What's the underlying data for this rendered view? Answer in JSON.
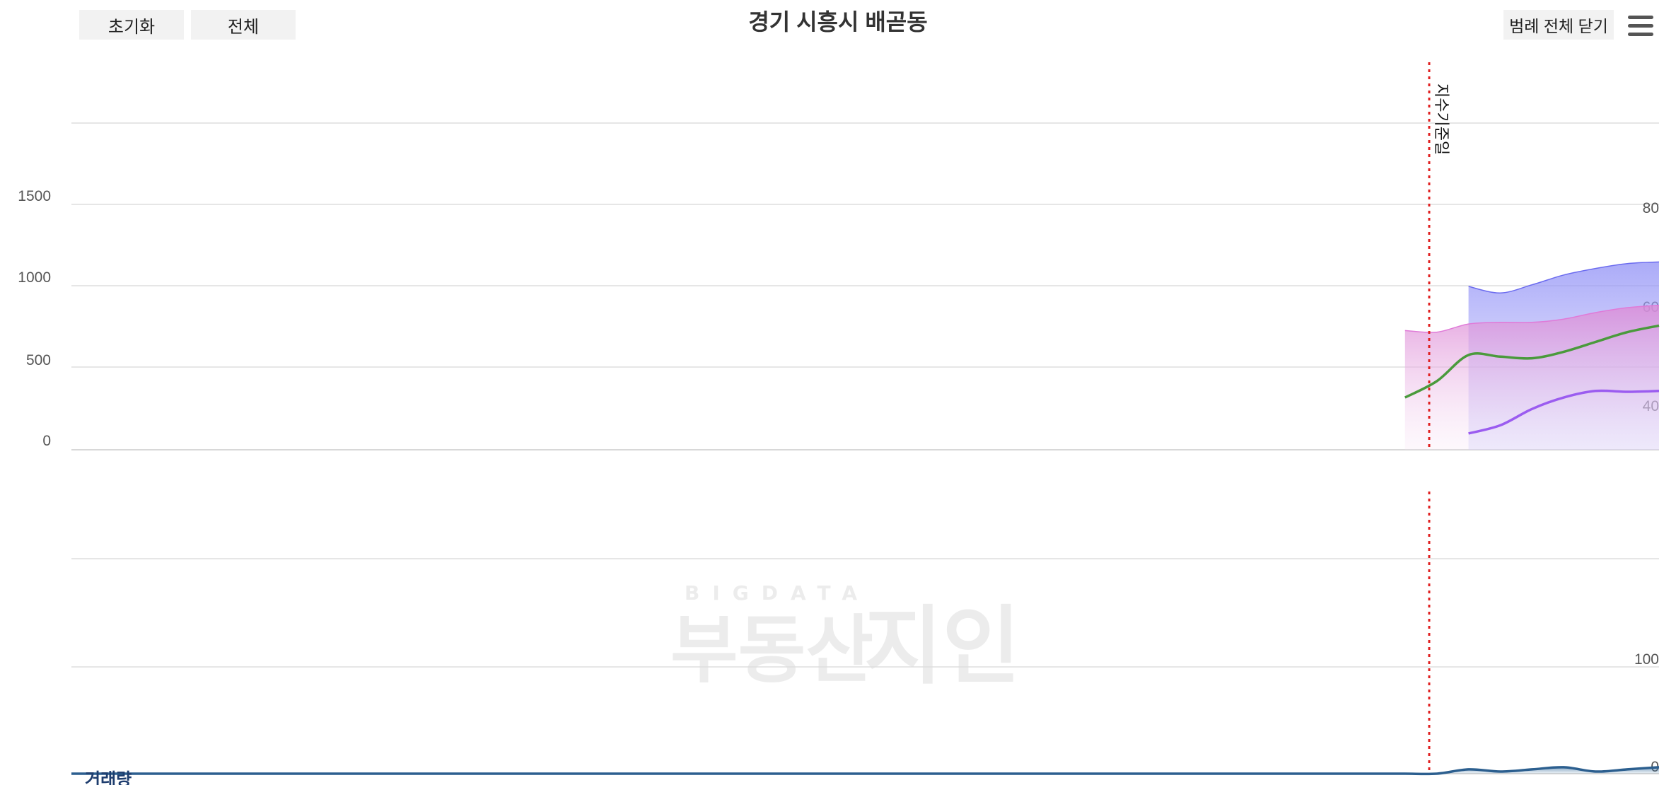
{
  "toolbar": {
    "reset_label": "초기화",
    "all_label": "전체",
    "legend_close_label": "범례 전체 닫기",
    "menu_icon": "hamburger-menu-icon"
  },
  "title": "경기 시흥시 배곧동",
  "watermark": {
    "small": "BIGDATA",
    "big_left": "부동산",
    "big_right": "지인"
  },
  "colors": {
    "blue_area": "#6b6bef",
    "pink_area": "#e07ad8",
    "green_line": "#4a9a3c",
    "purple_line": "#9b5cf0",
    "volume": "#2c5f8f",
    "ref_line": "#e02020"
  },
  "chart_data": [
    {
      "type": "area",
      "ylim_left": [
        0,
        2000
      ],
      "left_ticks": [
        "0",
        "500",
        "1000",
        "1500"
      ],
      "right_ticks": [
        "40",
        "60",
        "80"
      ],
      "x": [
        0,
        2,
        4,
        6,
        8,
        10,
        12,
        14,
        16,
        18,
        20,
        22,
        24,
        26,
        28,
        30,
        32,
        34,
        36,
        38,
        40,
        42,
        44,
        46,
        48,
        50,
        52,
        54,
        56,
        58,
        60,
        62,
        64,
        66,
        68,
        70,
        72,
        74,
        76,
        78,
        80,
        82,
        84,
        86,
        88,
        90,
        92,
        94,
        96,
        98,
        100
      ],
      "series": [
        {
          "values": [
            null,
            null,
            null,
            null,
            null,
            null,
            null,
            null,
            null,
            null,
            null,
            null,
            null,
            null,
            null,
            null,
            null,
            null,
            null,
            null,
            null,
            null,
            null,
            null,
            null,
            null,
            null,
            null,
            null,
            null,
            null,
            null,
            null,
            null,
            null,
            null,
            null,
            null,
            null,
            null,
            null,
            null,
            null,
            null,
            1000,
            960,
            1010,
            1070,
            1110,
            1140,
            1150
          ]
        },
        {
          "values": [
            null,
            null,
            null,
            null,
            null,
            null,
            null,
            null,
            null,
            null,
            null,
            null,
            null,
            null,
            null,
            null,
            null,
            null,
            null,
            null,
            null,
            null,
            null,
            null,
            null,
            null,
            null,
            null,
            null,
            null,
            null,
            null,
            null,
            null,
            null,
            null,
            null,
            null,
            null,
            null,
            null,
            null,
            730,
            720,
            770,
            780,
            780,
            800,
            840,
            870,
            885
          ]
        },
        {
          "values": [
            null,
            null,
            null,
            null,
            null,
            null,
            null,
            null,
            null,
            null,
            null,
            null,
            null,
            null,
            null,
            null,
            null,
            null,
            null,
            null,
            null,
            null,
            null,
            null,
            null,
            null,
            null,
            null,
            null,
            null,
            null,
            null,
            null,
            null,
            null,
            null,
            null,
            null,
            null,
            null,
            null,
            null,
            320,
            420,
            580,
            570,
            560,
            600,
            660,
            720,
            760
          ]
        },
        {
          "values": [
            null,
            null,
            null,
            null,
            null,
            null,
            null,
            null,
            null,
            null,
            null,
            null,
            null,
            null,
            null,
            null,
            null,
            null,
            null,
            null,
            null,
            null,
            null,
            null,
            null,
            null,
            null,
            null,
            null,
            null,
            null,
            null,
            null,
            null,
            null,
            null,
            null,
            null,
            null,
            null,
            null,
            null,
            null,
            null,
            100,
            150,
            250,
            320,
            360,
            355,
            360
          ]
        }
      ],
      "annotations": [
        {
          "text": "지수기준일"
        }
      ]
    },
    {
      "type": "area",
      "ylim": [
        0,
        150
      ],
      "right_ticks": [
        "0",
        "100"
      ],
      "ylabel": "거래량",
      "series": [
        {
          "values": [
            0,
            0,
            0,
            0,
            0,
            0,
            0,
            0,
            0,
            0,
            0,
            0,
            0,
            0,
            0,
            0,
            0,
            0,
            0,
            0,
            0,
            0,
            0,
            0,
            0,
            0,
            0,
            0,
            0,
            0,
            0,
            0,
            0,
            0,
            0,
            0,
            0,
            0,
            0,
            0,
            0,
            0,
            0,
            0,
            2,
            1,
            2,
            3,
            1,
            2,
            3
          ]
        },
        {
          "values": [
            null,
            null,
            null,
            null,
            null,
            null,
            null,
            null,
            null,
            null,
            null,
            null,
            null,
            null,
            null,
            null,
            null,
            null,
            null,
            null,
            null,
            null,
            null,
            null,
            null,
            null,
            null,
            null,
            null,
            null,
            null,
            null,
            null,
            null,
            null,
            null,
            null,
            null,
            null,
            null,
            null,
            null,
            null,
            null,
            null,
            null,
            null,
            null,
            null,
            null,
            null
          ]
        }
      ]
    }
  ]
}
